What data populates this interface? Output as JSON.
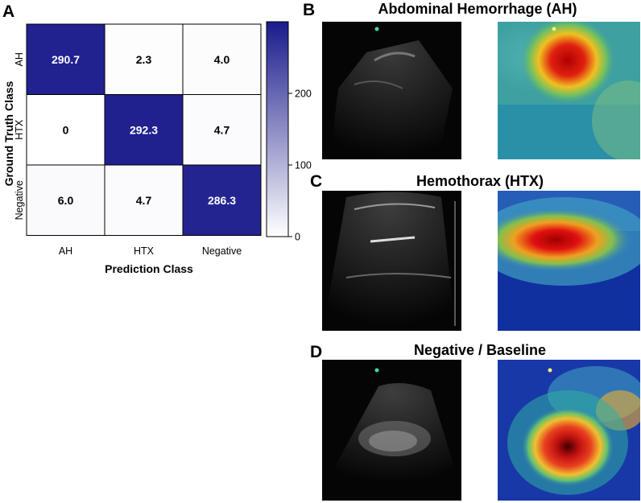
{
  "panels": {
    "a": "A",
    "b": "B",
    "c": "C",
    "d": "D"
  },
  "titles": {
    "b": "Abdominal Hemorrhage (AH)",
    "c": "Hemothorax (HTX)",
    "d": "Negative / Baseline"
  },
  "chart_data": {
    "type": "heatmap",
    "xlabel": "Prediction Class",
    "ylabel": "Ground Truth Class",
    "x_categories": [
      "AH",
      "HTX",
      "Negative"
    ],
    "y_categories": [
      "AH",
      "HTX",
      "Negative"
    ],
    "values": [
      [
        290.7,
        2.3,
        4.0
      ],
      [
        0,
        292.3,
        4.7
      ],
      [
        6.0,
        4.7,
        286.3
      ]
    ],
    "value_labels": [
      [
        "290.7",
        "2.3",
        "4.0"
      ],
      [
        "0",
        "292.3",
        "4.7"
      ],
      [
        "6.0",
        "4.7",
        "286.3"
      ]
    ],
    "colorbar": {
      "range": [
        0,
        300
      ],
      "ticks": [
        0,
        100,
        200
      ],
      "tick_labels": [
        "0",
        "100",
        "200"
      ],
      "color_low": "#ffffff",
      "color_high": "#1a1a8c"
    }
  }
}
